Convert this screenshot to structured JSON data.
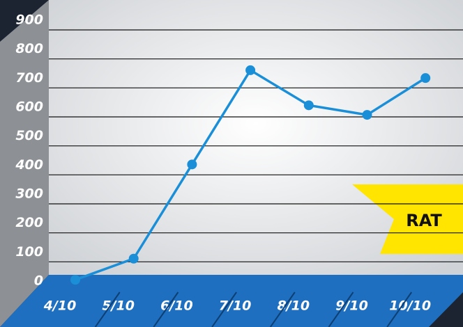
{
  "chart_data": {
    "type": "line",
    "categories": [
      "4/10",
      "5/10",
      "6/10",
      "7/10",
      "8/10",
      "9/10",
      "10/10"
    ],
    "series": [
      {
        "name": "RAT",
        "color": "#1a8fd8",
        "values": [
          38,
          111,
          436,
          761,
          640,
          607,
          734
        ]
      }
    ],
    "annotation": "RAT",
    "ylim": [
      0,
      900
    ],
    "yticks": [
      0,
      100,
      200,
      300,
      400,
      500,
      600,
      700,
      800,
      900
    ],
    "grid": true
  }
}
